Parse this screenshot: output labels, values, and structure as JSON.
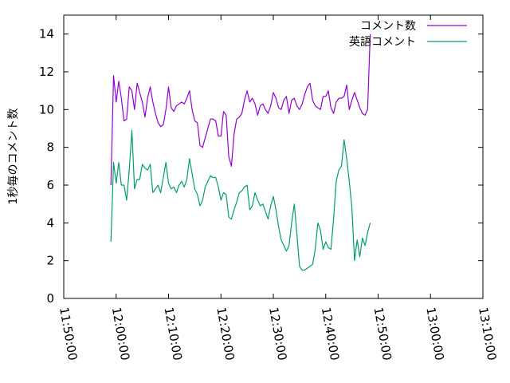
{
  "chart_data": {
    "type": "line",
    "title": "",
    "xlabel": "",
    "ylabel": "1秒毎のコメント数",
    "xlim": [
      "11:50:00",
      "13:10:00"
    ],
    "ylim": [
      0,
      15
    ],
    "x_ticks": [
      "11:50:00",
      "12:00:00",
      "12:10:00",
      "12:20:00",
      "12:30:00",
      "12:40:00",
      "12:50:00",
      "13:00:00",
      "13:10:00"
    ],
    "y_ticks": [
      0,
      2,
      4,
      6,
      8,
      10,
      12,
      14
    ],
    "grid": false,
    "legend_position": "top-right",
    "series": [
      {
        "name": "コメント数",
        "color": "#9400d3",
        "points": [
          [
            "11:59:00",
            6.0
          ],
          [
            "11:59:30",
            11.8
          ],
          [
            "12:00:00",
            10.4
          ],
          [
            "12:00:30",
            11.5
          ],
          [
            "12:01:00",
            10.6
          ],
          [
            "12:01:30",
            9.4
          ],
          [
            "12:02:00",
            9.5
          ],
          [
            "12:02:30",
            11.2
          ],
          [
            "12:03:00",
            11.0
          ],
          [
            "12:03:30",
            10.0
          ],
          [
            "12:04:00",
            11.4
          ],
          [
            "12:04:30",
            10.9
          ],
          [
            "12:05:00",
            10.4
          ],
          [
            "12:05:30",
            9.6
          ],
          [
            "12:06:00",
            10.6
          ],
          [
            "12:06:30",
            11.2
          ],
          [
            "12:07:00",
            10.4
          ],
          [
            "12:07:30",
            9.8
          ],
          [
            "12:08:00",
            9.3
          ],
          [
            "12:08:30",
            9.1
          ],
          [
            "12:09:00",
            9.2
          ],
          [
            "12:09:30",
            10.0
          ],
          [
            "12:10:00",
            11.2
          ],
          [
            "12:10:30",
            10.1
          ],
          [
            "12:11:00",
            9.9
          ],
          [
            "12:11:30",
            10.2
          ],
          [
            "12:12:00",
            10.3
          ],
          [
            "12:12:30",
            10.4
          ],
          [
            "12:13:00",
            10.3
          ],
          [
            "12:13:30",
            10.6
          ],
          [
            "12:14:00",
            11.0
          ],
          [
            "12:14:30",
            10.0
          ],
          [
            "12:15:00",
            9.4
          ],
          [
            "12:15:30",
            9.3
          ],
          [
            "12:16:00",
            8.1
          ],
          [
            "12:16:30",
            8.0
          ],
          [
            "12:17:00",
            8.5
          ],
          [
            "12:17:30",
            9.0
          ],
          [
            "12:18:00",
            9.5
          ],
          [
            "12:18:30",
            9.5
          ],
          [
            "12:19:00",
            9.4
          ],
          [
            "12:19:30",
            8.6
          ],
          [
            "12:20:00",
            8.6
          ],
          [
            "12:20:30",
            9.9
          ],
          [
            "12:21:00",
            9.7
          ],
          [
            "12:21:30",
            7.5
          ],
          [
            "12:22:00",
            7.0
          ],
          [
            "12:22:30",
            8.7
          ],
          [
            "12:23:00",
            9.5
          ],
          [
            "12:23:30",
            9.6
          ],
          [
            "12:24:00",
            9.8
          ],
          [
            "12:24:30",
            10.5
          ],
          [
            "12:25:00",
            11.0
          ],
          [
            "12:25:30",
            10.4
          ],
          [
            "12:26:00",
            10.6
          ],
          [
            "12:26:30",
            10.3
          ],
          [
            "12:27:00",
            9.7
          ],
          [
            "12:27:30",
            10.2
          ],
          [
            "12:28:00",
            10.3
          ],
          [
            "12:28:30",
            10.0
          ],
          [
            "12:29:00",
            9.8
          ],
          [
            "12:29:30",
            10.2
          ],
          [
            "12:30:00",
            10.9
          ],
          [
            "12:30:30",
            10.6
          ],
          [
            "12:31:00",
            10.1
          ],
          [
            "12:31:30",
            10.0
          ],
          [
            "12:32:00",
            10.5
          ],
          [
            "12:32:30",
            10.7
          ],
          [
            "12:33:00",
            9.8
          ],
          [
            "12:33:30",
            10.5
          ],
          [
            "12:34:00",
            10.6
          ],
          [
            "12:34:30",
            10.2
          ],
          [
            "12:35:00",
            10.0
          ],
          [
            "12:35:30",
            10.3
          ],
          [
            "12:36:00",
            10.8
          ],
          [
            "12:36:30",
            11.2
          ],
          [
            "12:37:00",
            11.4
          ],
          [
            "12:37:30",
            10.5
          ],
          [
            "12:38:00",
            10.2
          ],
          [
            "12:38:30",
            10.1
          ],
          [
            "12:39:00",
            10.0
          ],
          [
            "12:39:30",
            10.7
          ],
          [
            "12:40:00",
            10.7
          ],
          [
            "12:40:30",
            11.0
          ],
          [
            "12:41:00",
            10.1
          ],
          [
            "12:41:30",
            9.8
          ],
          [
            "12:42:00",
            10.4
          ],
          [
            "12:42:30",
            10.6
          ],
          [
            "12:43:00",
            10.6
          ],
          [
            "12:43:30",
            10.7
          ],
          [
            "12:44:00",
            11.3
          ],
          [
            "12:44:30",
            10.0
          ],
          [
            "12:45:00",
            10.5
          ],
          [
            "12:45:30",
            10.9
          ],
          [
            "12:46:00",
            10.5
          ],
          [
            "12:46:30",
            10.1
          ],
          [
            "12:47:00",
            9.8
          ],
          [
            "12:47:30",
            9.7
          ],
          [
            "12:48:00",
            10.0
          ],
          [
            "12:48:30",
            14.0
          ]
        ]
      },
      {
        "name": "英語コメント",
        "color": "#009e73",
        "points": [
          [
            "11:59:00",
            3.0
          ],
          [
            "11:59:30",
            7.2
          ],
          [
            "12:00:00",
            6.1
          ],
          [
            "12:00:30",
            7.2
          ],
          [
            "12:01:00",
            6.0
          ],
          [
            "12:01:30",
            6.0
          ],
          [
            "12:02:00",
            5.2
          ],
          [
            "12:02:30",
            6.8
          ],
          [
            "12:03:00",
            8.9
          ],
          [
            "12:03:30",
            5.8
          ],
          [
            "12:04:00",
            6.3
          ],
          [
            "12:04:30",
            6.3
          ],
          [
            "12:05:00",
            7.1
          ],
          [
            "12:05:30",
            6.9
          ],
          [
            "12:06:00",
            6.8
          ],
          [
            "12:06:30",
            7.1
          ],
          [
            "12:07:00",
            5.6
          ],
          [
            "12:07:30",
            5.8
          ],
          [
            "12:08:00",
            6.0
          ],
          [
            "12:08:30",
            5.6
          ],
          [
            "12:09:00",
            6.4
          ],
          [
            "12:09:30",
            7.2
          ],
          [
            "12:10:00",
            6.1
          ],
          [
            "12:10:30",
            5.8
          ],
          [
            "12:11:00",
            5.9
          ],
          [
            "12:11:30",
            5.6
          ],
          [
            "12:12:00",
            6.0
          ],
          [
            "12:12:30",
            6.2
          ],
          [
            "12:13:00",
            5.9
          ],
          [
            "12:13:30",
            6.3
          ],
          [
            "12:14:00",
            7.4
          ],
          [
            "12:14:30",
            6.6
          ],
          [
            "12:15:00",
            5.8
          ],
          [
            "12:15:30",
            5.5
          ],
          [
            "12:16:00",
            4.9
          ],
          [
            "12:16:30",
            5.2
          ],
          [
            "12:17:00",
            5.9
          ],
          [
            "12:17:30",
            6.2
          ],
          [
            "12:18:00",
            6.5
          ],
          [
            "12:18:30",
            6.4
          ],
          [
            "12:19:00",
            6.4
          ],
          [
            "12:19:30",
            5.9
          ],
          [
            "12:20:00",
            5.2
          ],
          [
            "12:20:30",
            5.6
          ],
          [
            "12:21:00",
            5.5
          ],
          [
            "12:21:30",
            4.3
          ],
          [
            "12:22:00",
            4.2
          ],
          [
            "12:22:30",
            4.7
          ],
          [
            "12:23:00",
            5.1
          ],
          [
            "12:23:30",
            5.6
          ],
          [
            "12:24:00",
            5.7
          ],
          [
            "12:24:30",
            5.9
          ],
          [
            "12:25:00",
            6.0
          ],
          [
            "12:25:30",
            4.7
          ],
          [
            "12:26:00",
            4.9
          ],
          [
            "12:26:30",
            5.6
          ],
          [
            "12:27:00",
            5.2
          ],
          [
            "12:27:30",
            4.9
          ],
          [
            "12:28:00",
            5.0
          ],
          [
            "12:28:30",
            4.6
          ],
          [
            "12:29:00",
            4.2
          ],
          [
            "12:29:30",
            4.9
          ],
          [
            "12:30:00",
            5.4
          ],
          [
            "12:30:30",
            4.7
          ],
          [
            "12:31:00",
            3.8
          ],
          [
            "12:31:30",
            3.1
          ],
          [
            "12:32:00",
            2.8
          ],
          [
            "12:32:30",
            2.5
          ],
          [
            "12:33:00",
            2.8
          ],
          [
            "12:33:30",
            4.0
          ],
          [
            "12:34:00",
            5.0
          ],
          [
            "12:34:30",
            3.4
          ],
          [
            "12:35:00",
            1.7
          ],
          [
            "12:35:30",
            1.5
          ],
          [
            "12:36:00",
            1.5
          ],
          [
            "12:36:30",
            1.6
          ],
          [
            "12:37:00",
            1.7
          ],
          [
            "12:37:30",
            1.8
          ],
          [
            "12:38:00",
            2.6
          ],
          [
            "12:38:30",
            4.0
          ],
          [
            "12:39:00",
            3.6
          ],
          [
            "12:39:30",
            2.6
          ],
          [
            "12:40:00",
            3.0
          ],
          [
            "12:40:30",
            2.7
          ],
          [
            "12:41:00",
            2.6
          ],
          [
            "12:41:30",
            4.2
          ],
          [
            "12:42:00",
            6.2
          ],
          [
            "12:42:30",
            6.8
          ],
          [
            "12:43:00",
            7.0
          ],
          [
            "12:43:30",
            8.4
          ],
          [
            "12:44:00",
            7.4
          ],
          [
            "12:44:30",
            6.2
          ],
          [
            "12:45:00",
            4.8
          ],
          [
            "12:45:30",
            2.0
          ],
          [
            "12:46:00",
            3.1
          ],
          [
            "12:46:30",
            2.2
          ],
          [
            "12:47:00",
            3.2
          ],
          [
            "12:47:30",
            2.8
          ],
          [
            "12:48:00",
            3.5
          ],
          [
            "12:48:30",
            4.0
          ]
        ]
      }
    ]
  }
}
